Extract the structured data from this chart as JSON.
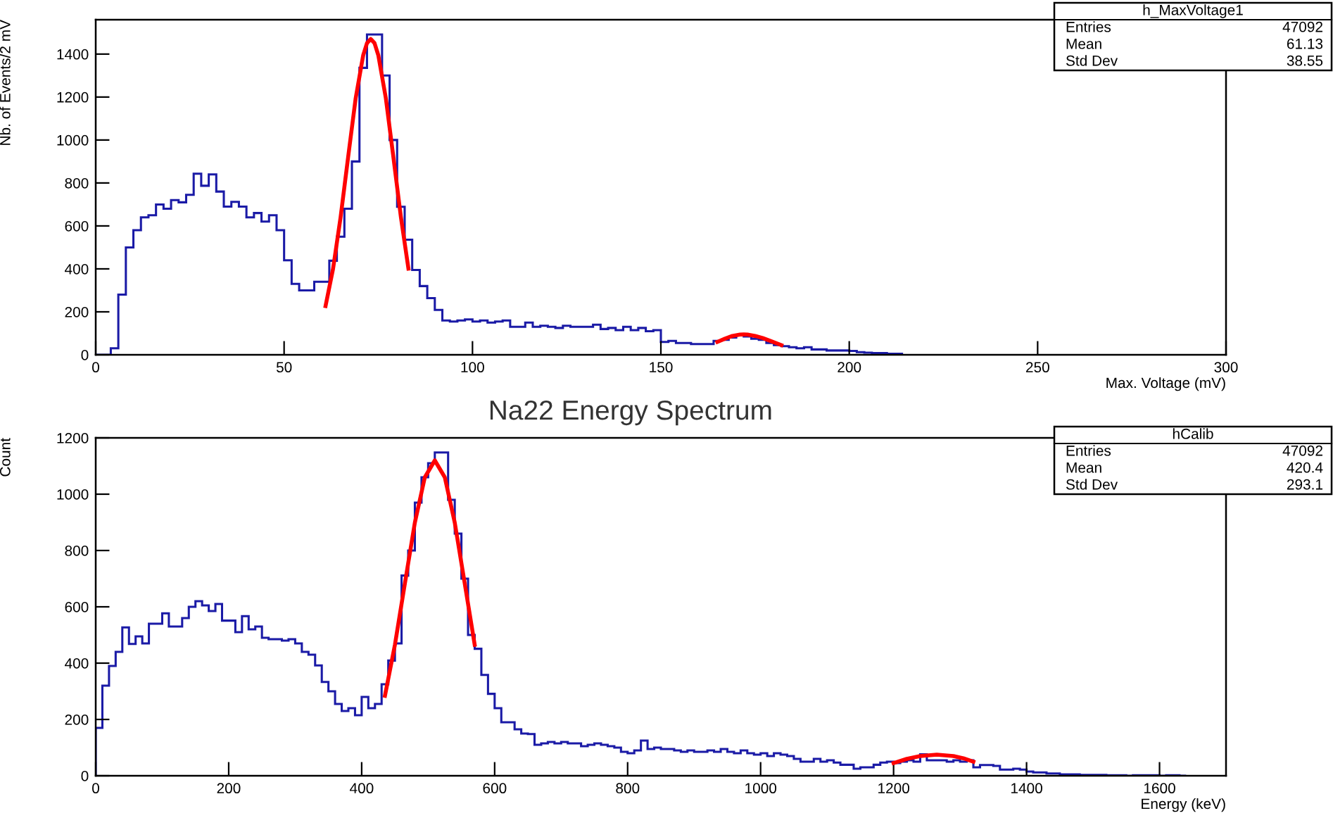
{
  "chart_data": [
    {
      "type": "histogram",
      "ylabel": "Nb. of Events/2 mV",
      "xlabel": "Max. Voltage (mV)",
      "xlim": [
        0,
        300
      ],
      "xticks": [
        0,
        50,
        100,
        150,
        200,
        250,
        300
      ],
      "ylim": [
        0,
        1560
      ],
      "yticks": [
        0,
        200,
        400,
        600,
        800,
        1000,
        1200,
        1400
      ],
      "annotations": [
        "h_MaxVoltage1",
        "Entries",
        "47092",
        "Mean",
        "61.13",
        "Std Dev",
        "38.55"
      ],
      "series": [
        {
          "color": "#1a1aa6",
          "bins": [
            0,
            2,
            4,
            6,
            8,
            10,
            12,
            14,
            16,
            18,
            20,
            22,
            24,
            26,
            28,
            30,
            32,
            34,
            36,
            38,
            40,
            42,
            44,
            46,
            48,
            50,
            52,
            54,
            56,
            58,
            60,
            62,
            64,
            66,
            68,
            70,
            72,
            74,
            76,
            78,
            80,
            82,
            84,
            86,
            88,
            90,
            92,
            94,
            96,
            98,
            100,
            102,
            104,
            106,
            108,
            110,
            112,
            114,
            116,
            118,
            120,
            122,
            124,
            126,
            128,
            130,
            132,
            134,
            136,
            138,
            140,
            142,
            144,
            146,
            148,
            150,
            152,
            154,
            156,
            158,
            160,
            162,
            164,
            166,
            168,
            170,
            172,
            174,
            176,
            178,
            180,
            182,
            184,
            186,
            188,
            190,
            192,
            194,
            196,
            198,
            200,
            202,
            204,
            206,
            208,
            210,
            212,
            214
          ],
          "values": [
            0,
            0,
            30,
            280,
            500,
            580,
            640,
            650,
            700,
            680,
            720,
            710,
            745,
            843,
            787,
            840,
            760,
            690,
            712,
            690,
            640,
            660,
            620,
            650,
            580,
            440,
            330,
            300,
            300,
            340,
            340,
            438,
            550,
            680,
            900,
            1336,
            1491,
            1491,
            1300,
            1000,
            689,
            536,
            395,
            320,
            264,
            209,
            160,
            155,
            160,
            165,
            155,
            160,
            150,
            155,
            160,
            130,
            130,
            150,
            130,
            135,
            130,
            125,
            135,
            130,
            130,
            130,
            140,
            120,
            125,
            115,
            130,
            115,
            125,
            110,
            115,
            60,
            65,
            55,
            55,
            50,
            50,
            50,
            65,
            70,
            80,
            90,
            85,
            75,
            70,
            55,
            45,
            40,
            35,
            30,
            35,
            25,
            25,
            20,
            20,
            20,
            18,
            12,
            10,
            8,
            8,
            5,
            5
          ]
        },
        {
          "type": "line",
          "color": "#ff0000",
          "x": [
            61,
            63,
            65,
            67,
            69,
            71,
            72,
            73,
            74,
            75,
            77,
            79,
            81,
            83
          ],
          "values": [
            227,
            401,
            641,
            921,
            1195,
            1395,
            1451,
            1470,
            1451,
            1395,
            1195,
            921,
            641,
            401
          ]
        },
        {
          "type": "line",
          "color": "#ff0000",
          "x": [
            165,
            167,
            169,
            171,
            172,
            173,
            175,
            177,
            179,
            182
          ],
          "values": [
            60,
            75,
            88,
            94,
            95,
            94,
            88,
            78,
            65,
            45
          ]
        }
      ]
    },
    {
      "type": "histogram",
      "title": "Na22 Energy Spectrum",
      "ylabel": "Count",
      "xlabel": "Energy (keV)",
      "xlim": [
        0,
        1700
      ],
      "xticks": [
        0,
        200,
        400,
        600,
        800,
        1000,
        1200,
        1400,
        1600
      ],
      "ylim": [
        0,
        1200
      ],
      "yticks": [
        0,
        200,
        400,
        600,
        800,
        1000,
        1200
      ],
      "annotations": [
        "hCalib",
        "Entries",
        "47092",
        "Mean",
        "420.4",
        "Std Dev",
        "293.1"
      ],
      "series": [
        {
          "color": "#1a1aa6",
          "bins": [
            0,
            10,
            20,
            30,
            40,
            50,
            60,
            70,
            80,
            90,
            100,
            110,
            120,
            130,
            140,
            150,
            160,
            170,
            180,
            190,
            200,
            210,
            220,
            230,
            240,
            250,
            260,
            270,
            280,
            290,
            300,
            310,
            320,
            330,
            340,
            350,
            360,
            370,
            380,
            390,
            400,
            410,
            420,
            430,
            440,
            450,
            460,
            470,
            480,
            490,
            500,
            510,
            520,
            530,
            540,
            550,
            560,
            570,
            580,
            590,
            600,
            610,
            620,
            630,
            640,
            650,
            660,
            670,
            680,
            690,
            700,
            710,
            720,
            730,
            740,
            750,
            760,
            770,
            780,
            790,
            800,
            810,
            820,
            830,
            840,
            850,
            860,
            870,
            880,
            890,
            900,
            910,
            920,
            930,
            940,
            950,
            960,
            970,
            980,
            990,
            1000,
            1010,
            1020,
            1030,
            1040,
            1050,
            1060,
            1070,
            1080,
            1090,
            1100,
            1110,
            1120,
            1130,
            1140,
            1150,
            1160,
            1170,
            1180,
            1190,
            1200,
            1210,
            1220,
            1230,
            1240,
            1250,
            1260,
            1270,
            1280,
            1290,
            1300,
            1310,
            1320,
            1330,
            1340,
            1350,
            1360,
            1370,
            1380,
            1390,
            1400,
            1410,
            1420,
            1430,
            1440,
            1450,
            1460,
            1470,
            1480,
            1490,
            1500,
            1510,
            1520,
            1530,
            1540,
            1550,
            1560,
            1570,
            1580,
            1590,
            1600,
            1610,
            1620,
            1630,
            1640
          ],
          "values": [
            170,
            320,
            390,
            440,
            527,
            468,
            495,
            470,
            540,
            540,
            577,
            530,
            530,
            560,
            600,
            620,
            605,
            585,
            610,
            551,
            551,
            510,
            567,
            520,
            530,
            490,
            485,
            485,
            480,
            485,
            470,
            440,
            430,
            392,
            333,
            300,
            255,
            230,
            240,
            215,
            280,
            240,
            255,
            325,
            409,
            470,
            711,
            800,
            970,
            1060,
            1110,
            1148,
            1148,
            980,
            860,
            700,
            500,
            451,
            358,
            291,
            240,
            190,
            190,
            165,
            150,
            148,
            110,
            115,
            120,
            115,
            120,
            115,
            115,
            105,
            110,
            115,
            110,
            105,
            100,
            85,
            80,
            90,
            125,
            95,
            100,
            95,
            95,
            90,
            85,
            90,
            85,
            85,
            90,
            85,
            95,
            85,
            80,
            90,
            80,
            75,
            80,
            70,
            80,
            75,
            70,
            60,
            50,
            50,
            60,
            50,
            55,
            47,
            39,
            39,
            25,
            30,
            30,
            39,
            47,
            50,
            45,
            50,
            55,
            50,
            76,
            55,
            55,
            55,
            50,
            55,
            50,
            55,
            30,
            38,
            38,
            35,
            22,
            22,
            25,
            22,
            15,
            12,
            12,
            8,
            8,
            5,
            5,
            5,
            3,
            3,
            3,
            3,
            2,
            2,
            2,
            0,
            2,
            2,
            2,
            2,
            0,
            2,
            2,
            0
          ]
        },
        {
          "type": "line",
          "color": "#ff0000",
          "x": [
            435,
            450,
            465,
            480,
            495,
            510,
            525,
            540,
            555,
            570
          ],
          "values": [
            284,
            465,
            683,
            899,
            1060,
            1120,
            1060,
            899,
            683,
            465
          ]
        },
        {
          "type": "line",
          "color": "#ff0000",
          "x": [
            1200,
            1220,
            1240,
            1265,
            1290,
            1305,
            1320
          ],
          "values": [
            45,
            60,
            70,
            75,
            70,
            62,
            50
          ]
        }
      ]
    }
  ]
}
